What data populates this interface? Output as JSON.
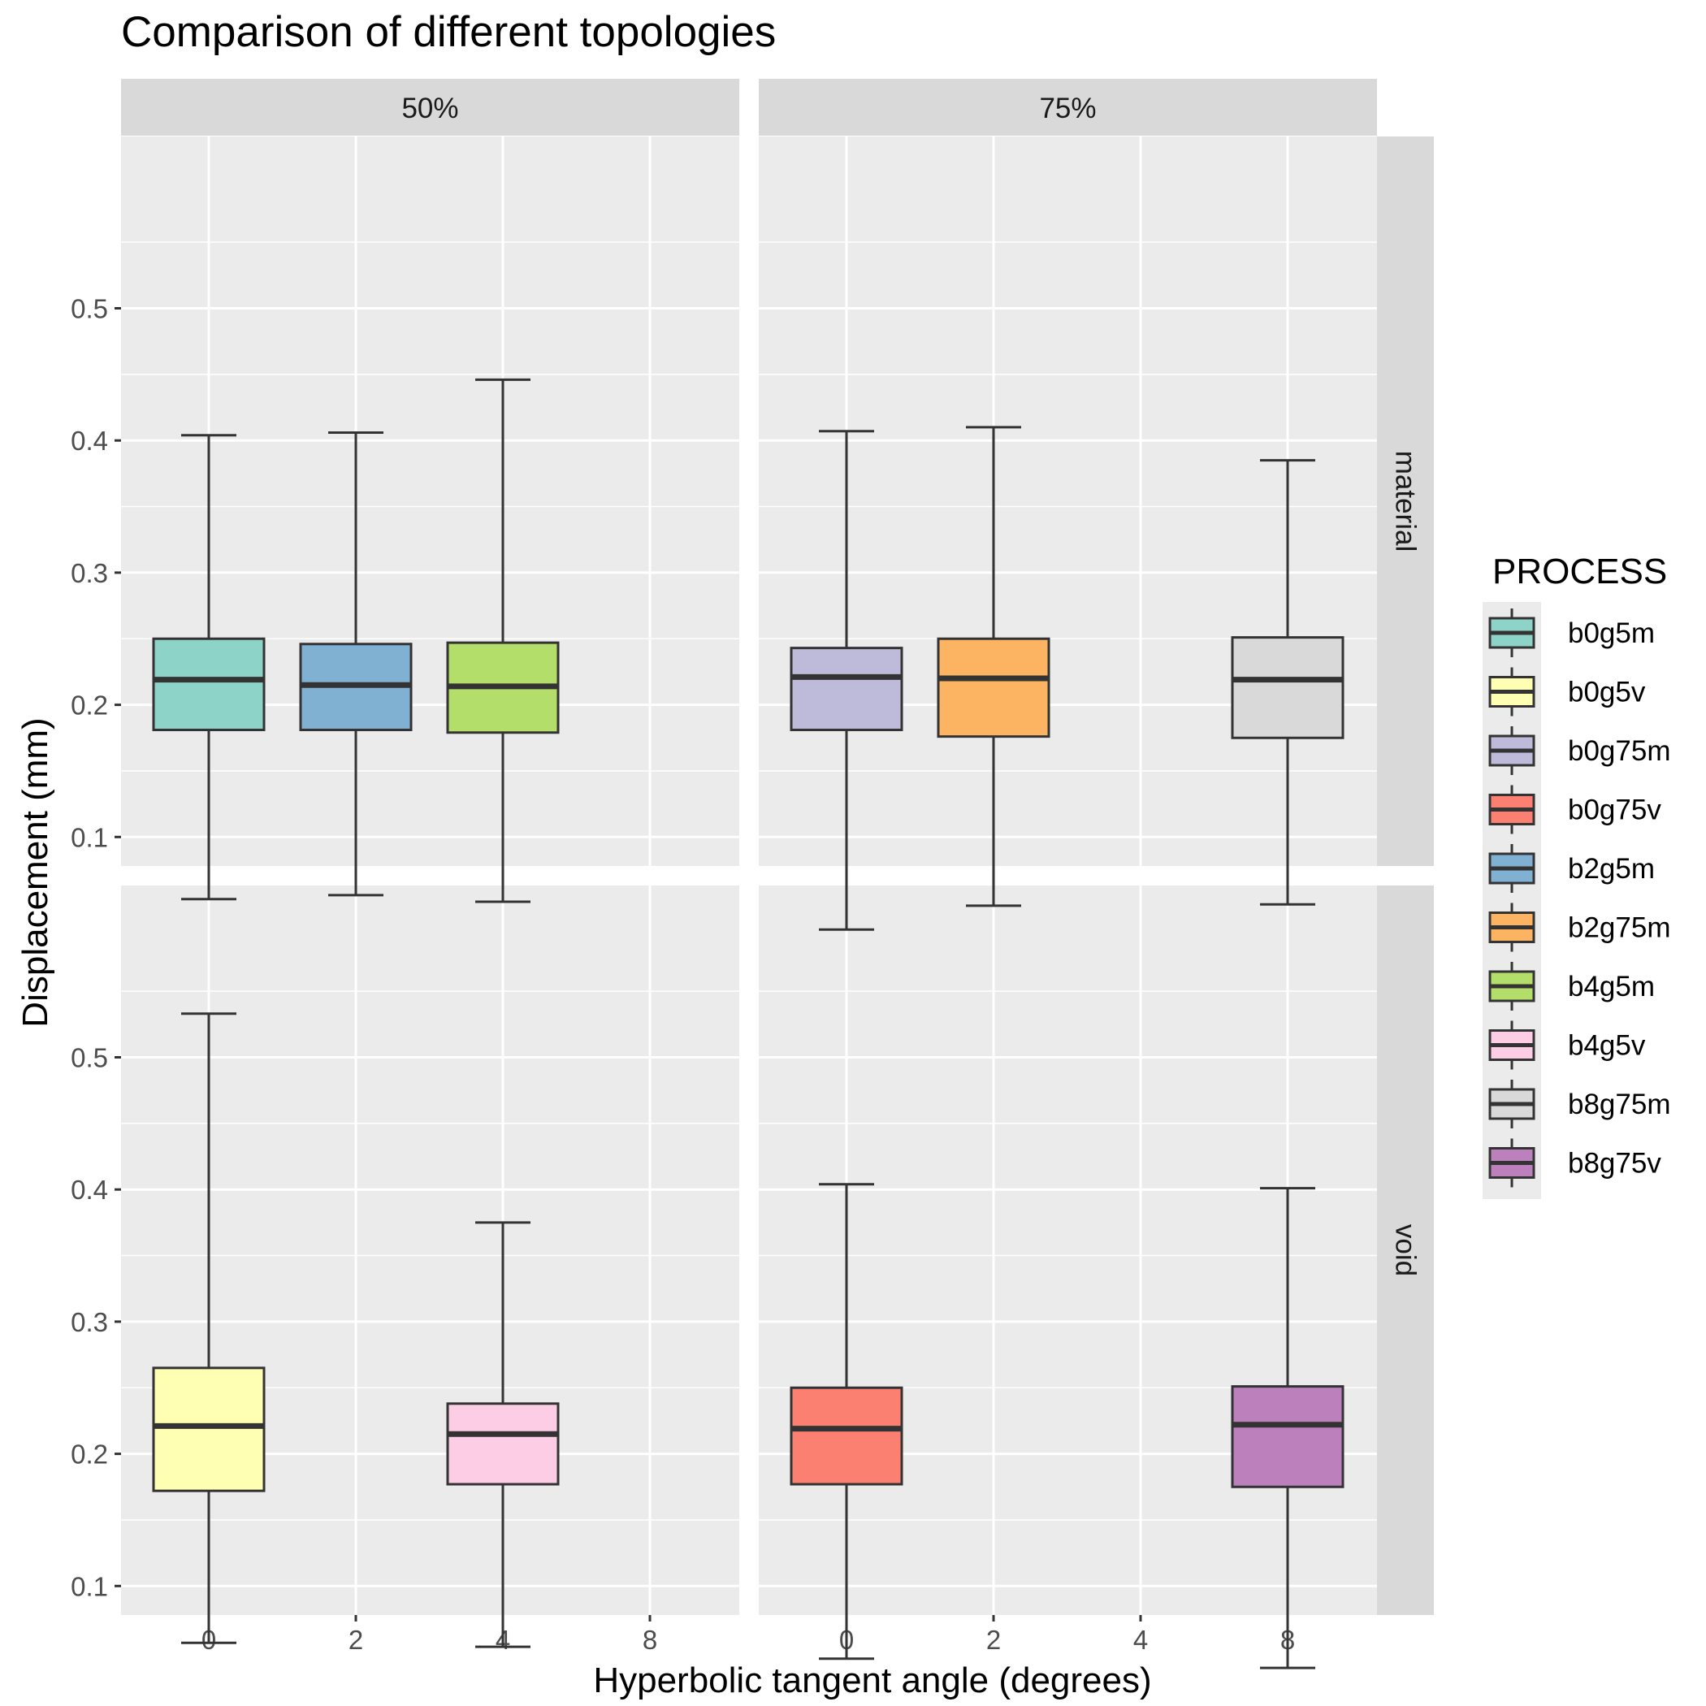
{
  "chart_data": {
    "type": "boxplot",
    "title": "Comparison of different topologies",
    "xlabel": "Hyperbolic tangent angle (degrees)",
    "ylabel": "Displacement (mm)",
    "x_categories": [
      "0",
      "2",
      "4",
      "8"
    ],
    "y_ticks": [
      "0.1",
      "0.2",
      "0.3",
      "0.4",
      "0.5"
    ],
    "ylim": [
      0,
      0.56
    ],
    "grid": true,
    "legend": {
      "title": "PROCESS",
      "position": "right",
      "entries": [
        {
          "label": "b0g5m",
          "color": "#8DD3C7"
        },
        {
          "label": "b0g5v",
          "color": "#FFFFB3"
        },
        {
          "label": "b0g75m",
          "color": "#BEBADA"
        },
        {
          "label": "b0g75v",
          "color": "#FB8072"
        },
        {
          "label": "b2g5m",
          "color": "#80B1D3"
        },
        {
          "label": "b2g75m",
          "color": "#FDB462"
        },
        {
          "label": "b4g5m",
          "color": "#B3DE69"
        },
        {
          "label": "b4g5v",
          "color": "#FCCDE5"
        },
        {
          "label": "b8g75m",
          "color": "#D9D9D9"
        },
        {
          "label": "b8g75v",
          "color": "#BC80BD"
        }
      ]
    },
    "facet_columns": [
      "50%",
      "75%"
    ],
    "facet_rows": [
      "material",
      "void"
    ],
    "panels": [
      {
        "column": "50%",
        "row": "material",
        "boxes": [
          {
            "process": "b0g5m",
            "x": "0",
            "min": 0.053,
            "q1": 0.181,
            "median": 0.219,
            "q3": 0.25,
            "max": 0.404
          },
          {
            "process": "b2g5m",
            "x": "2",
            "min": 0.056,
            "q1": 0.181,
            "median": 0.215,
            "q3": 0.246,
            "max": 0.406
          },
          {
            "process": "b4g5m",
            "x": "4",
            "min": 0.051,
            "q1": 0.179,
            "median": 0.214,
            "q3": 0.247,
            "max": 0.446
          }
        ]
      },
      {
        "column": "75%",
        "row": "material",
        "boxes": [
          {
            "process": "b0g75m",
            "x": "0",
            "min": 0.03,
            "q1": 0.181,
            "median": 0.221,
            "q3": 0.243,
            "max": 0.407
          },
          {
            "process": "b2g75m",
            "x": "2",
            "min": 0.048,
            "q1": 0.176,
            "median": 0.22,
            "q3": 0.25,
            "max": 0.41
          },
          {
            "process": "b8g75m",
            "x": "8",
            "min": 0.049,
            "q1": 0.175,
            "median": 0.219,
            "q3": 0.251,
            "max": 0.385
          }
        ]
      },
      {
        "column": "50%",
        "row": "void",
        "boxes": [
          {
            "process": "b0g5v",
            "x": "0",
            "min": 0.057,
            "q1": 0.172,
            "median": 0.221,
            "q3": 0.265,
            "max": 0.533
          },
          {
            "process": "b4g5v",
            "x": "4",
            "min": 0.054,
            "q1": 0.177,
            "median": 0.215,
            "q3": 0.238,
            "max": 0.375
          }
        ]
      },
      {
        "column": "75%",
        "row": "void",
        "boxes": [
          {
            "process": "b0g75v",
            "x": "0",
            "min": 0.045,
            "q1": 0.177,
            "median": 0.219,
            "q3": 0.25,
            "max": 0.404
          },
          {
            "process": "b8g75v",
            "x": "8",
            "min": 0.038,
            "q1": 0.175,
            "median": 0.222,
            "q3": 0.251,
            "max": 0.401
          }
        ]
      }
    ]
  }
}
